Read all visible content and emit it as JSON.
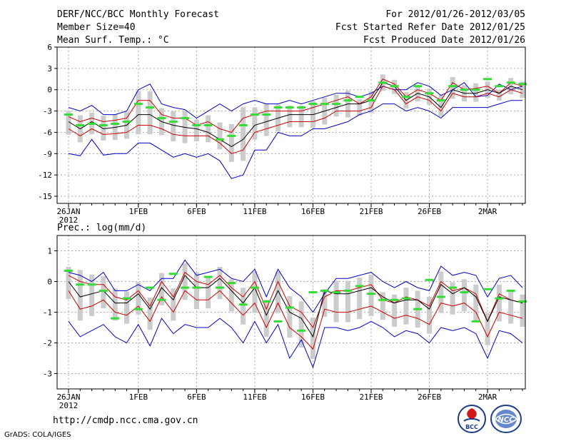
{
  "header": {
    "title": "DERF/NCC/BCC Monthly Forecast",
    "member_size": "Member Size=40",
    "variable1": "Mean Surf. Temp.: °C",
    "period": "For 2012/01/26-2012/03/05",
    "started": "Fcst Started Refer Date 2012/01/25",
    "produced": "Fcst Produced Date 2012/01/26"
  },
  "panel2_label": "Prec.: log(mm/d)",
  "year_label": "2012",
  "footer": {
    "url": "http://cmdp.ncc.cma.gov.cn",
    "grads": "GrADS: COLA/IGES",
    "logo_bcc": "BCC",
    "logo_ncc": "NCC"
  },
  "colors": {
    "envelope": "#0000cc",
    "spread": "#cc0000",
    "mean": "#000000",
    "median": "#33dd33",
    "box": "#cccccc",
    "grid": "#aaaaaa"
  },
  "chart_data": [
    {
      "type": "line",
      "title": "Mean Surf. Temp.: °C",
      "x_tick_labels": [
        "26JAN",
        "1FEB",
        "6FEB",
        "11FEB",
        "16FEB",
        "21FEB",
        "26FEB",
        "2MAR"
      ],
      "x_tick_days": [
        0,
        6,
        11,
        16,
        21,
        26,
        31,
        36
      ],
      "ylim": [
        -16,
        6
      ],
      "yticks": [
        6,
        3,
        0,
        -3,
        -6,
        -9,
        -12,
        -15
      ],
      "days": 40,
      "series": [
        {
          "name": "max",
          "values": [
            -2.5,
            -3,
            -2.2,
            -3.5,
            -3.5,
            -3,
            0,
            0.8,
            -2,
            -2.5,
            -2.8,
            -4,
            -3,
            -2,
            -3,
            -2,
            -1.5,
            -2,
            -2,
            -1.5,
            -2,
            -1.5,
            -1,
            -0.5,
            -0.5,
            -1,
            -0.5,
            0.5,
            0,
            0,
            1,
            0.5,
            -0.8,
            0,
            1,
            -1,
            -0.8,
            0.8,
            0,
            0.5
          ]
        },
        {
          "name": "upper",
          "values": [
            -3.8,
            -4.5,
            -4,
            -4.5,
            -4.3,
            -4,
            -1.5,
            -1.5,
            -3.5,
            -4,
            -4,
            -5,
            -4.5,
            -5.5,
            -6,
            -4,
            -3.5,
            -3,
            -3,
            -3,
            -3,
            -2.5,
            -2,
            -1.5,
            -1,
            -2,
            -1,
            1.5,
            0.8,
            -1,
            0,
            -0.5,
            -1.5,
            1,
            0,
            0.2,
            0.5,
            -0.5,
            1,
            0.5
          ]
        },
        {
          "name": "mean",
          "values": [
            -4.5,
            -5.5,
            -4.5,
            -5.5,
            -5.3,
            -5,
            -3.5,
            -3.5,
            -4.5,
            -5,
            -5.3,
            -5.5,
            -6,
            -7,
            -8,
            -7,
            -5,
            -4.5,
            -4,
            -3.5,
            -3.5,
            -3.5,
            -3,
            -2.5,
            -2,
            -2,
            -1.5,
            1,
            0.5,
            -1.5,
            -0.5,
            -1,
            -2.5,
            0,
            -0.5,
            -0.5,
            0,
            -0.5,
            0.5,
            0
          ]
        },
        {
          "name": "lower",
          "values": [
            -5.5,
            -6.5,
            -5.5,
            -6.3,
            -6.2,
            -6,
            -5,
            -5,
            -5.5,
            -6.3,
            -6.5,
            -6.5,
            -6.5,
            -7.5,
            -9,
            -8.5,
            -6,
            -5.5,
            -5,
            -4.5,
            -4.5,
            -4.5,
            -4,
            -3,
            -3,
            -3,
            -2.5,
            0.5,
            0,
            -2,
            -1,
            -1.5,
            -3,
            -0.5,
            -1,
            -1,
            -0.5,
            -1,
            0,
            -0.5
          ]
        },
        {
          "name": "min",
          "values": [
            -9,
            -9.3,
            -7,
            -9.2,
            -9,
            -9,
            -7.5,
            -7.5,
            -8.5,
            -9.5,
            -9,
            -9.5,
            -9,
            -10,
            -12.5,
            -12,
            -8.5,
            -8.5,
            -6,
            -6.5,
            -6.5,
            -5.5,
            -5.5,
            -5,
            -4.5,
            -3.5,
            -3,
            -2,
            -2,
            -3,
            -2.5,
            -3,
            -4,
            -2.5,
            -2.5,
            -2.5,
            -2.5,
            -2,
            -1.5,
            -1.5
          ]
        },
        {
          "name": "median",
          "values": [
            -3.5,
            -5,
            -4.8,
            -5,
            -4.8,
            -4.5,
            -2,
            -2.5,
            -4,
            -4.5,
            -4,
            -5,
            -5,
            -7,
            -6.5,
            -5,
            -3.5,
            -3.5,
            -2.5,
            -2.5,
            -2.5,
            -2,
            -2,
            -2,
            -1.5,
            -1,
            -1.5,
            1,
            0.5,
            -1,
            0.5,
            -0.5,
            -1.5,
            0.5,
            0,
            0,
            1.5,
            0.5,
            1,
            0.8
          ]
        }
      ]
    },
    {
      "type": "line",
      "title": "Prec.: log(mm/d)",
      "x_tick_labels": [
        "26JAN",
        "1FEB",
        "6FEB",
        "11FEB",
        "16FEB",
        "21FEB",
        "26FEB",
        "2MAR"
      ],
      "x_tick_days": [
        0,
        6,
        11,
        16,
        21,
        26,
        31,
        36
      ],
      "ylim": [
        -3.5,
        1.5
      ],
      "yticks": [
        1,
        0,
        -1,
        -2,
        -3
      ],
      "days": 40,
      "series": [
        {
          "name": "max",
          "values": [
            0.3,
            0.2,
            0,
            0.3,
            -0.3,
            -0.3,
            -0.1,
            -0.3,
            0.1,
            0.1,
            0.7,
            0.2,
            0.3,
            0.4,
            0.1,
            0,
            0.4,
            -0.5,
            0.4,
            -0.2,
            -0.5,
            -1,
            -0.4,
            0.1,
            0.1,
            0.2,
            0.3,
            0,
            -0.2,
            0,
            -0.2,
            -0.3,
            0.5,
            0.2,
            0.3,
            0.2,
            -0.5,
            0.1,
            0.2,
            -0.2
          ]
        },
        {
          "name": "upper",
          "values": [
            0.2,
            0,
            -0.1,
            -0.1,
            -0.5,
            -0.6,
            -0.3,
            -0.8,
            0,
            -0.5,
            0.3,
            0,
            -0.1,
            0.2,
            -0.2,
            -0.5,
            0,
            -0.9,
            0,
            -0.8,
            -1,
            -1.5,
            -0.5,
            -0.3,
            -0.3,
            -0.2,
            -0.1,
            -0.6,
            -0.7,
            -0.5,
            -0.6,
            -0.8,
            0,
            -0.3,
            -0.2,
            -0.4,
            -1.3,
            -0.4,
            -0.6,
            -0.7
          ]
        },
        {
          "name": "mean",
          "values": [
            0,
            -0.5,
            -0.4,
            -0.3,
            -0.7,
            -0.7,
            -0.4,
            -0.9,
            -0.2,
            -0.6,
            0.2,
            -0.2,
            -0.2,
            0.1,
            -0.3,
            -0.7,
            -0.2,
            -1.1,
            -0.3,
            -1,
            -1.2,
            -1.8,
            -0.3,
            -0.4,
            -0.4,
            -0.3,
            -0.2,
            -0.5,
            -0.7,
            -0.6,
            -0.6,
            -0.9,
            -0.1,
            -0.4,
            -0.2,
            -0.5,
            -1.3,
            -0.5,
            -0.6,
            -0.7
          ]
        },
        {
          "name": "lower",
          "values": [
            -0.3,
            -0.9,
            -0.8,
            -0.6,
            -1,
            -1.1,
            -0.8,
            -1.3,
            -0.5,
            -1,
            -0.3,
            -0.6,
            -0.6,
            -0.3,
            -0.7,
            -1.1,
            -0.7,
            -1.5,
            -0.7,
            -1.5,
            -1.8,
            -2.2,
            -0.9,
            -1,
            -1,
            -0.9,
            -0.8,
            -1,
            -1.2,
            -1.1,
            -1.2,
            -1.4,
            -0.7,
            -0.8,
            -0.7,
            -1,
            -1.8,
            -1,
            -1.1,
            -1.2
          ]
        },
        {
          "name": "min",
          "values": [
            -1.3,
            -1.8,
            -1.6,
            -1.4,
            -1.8,
            -2,
            -1.4,
            -2.1,
            -1.2,
            -1.7,
            -1.4,
            -1.5,
            -1.5,
            -1.2,
            -1.5,
            -2,
            -1.3,
            -2,
            -1.4,
            -2.5,
            -1.9,
            -2.8,
            -1.5,
            -1.5,
            -1.6,
            -1.5,
            -1.3,
            -1.5,
            -1.8,
            -1.6,
            -1.7,
            -2,
            -1.5,
            -1.6,
            -1.5,
            -1.7,
            -2.5,
            -1.6,
            -1.7,
            -2
          ]
        },
        {
          "name": "median",
          "values": [
            0.35,
            -0.1,
            -0.1,
            -0.3,
            -1.2,
            -0.55,
            -0.9,
            -0.2,
            -0.6,
            0.25,
            -0.2,
            -0.2,
            0.15,
            -0.2,
            -0.05,
            -0.75,
            -0.2,
            -0.65,
            -1.3,
            -0.85,
            -1.6,
            -0.35,
            -0.3,
            -0.35,
            -0.3,
            -0.15,
            -0.4,
            -0.6,
            -0.6,
            -0.55,
            -0.9,
            0.05,
            -0.5,
            -0.2,
            -0.35,
            -1.3,
            -0.25,
            -0.55,
            -0.3,
            -0.65
          ]
        }
      ]
    }
  ]
}
